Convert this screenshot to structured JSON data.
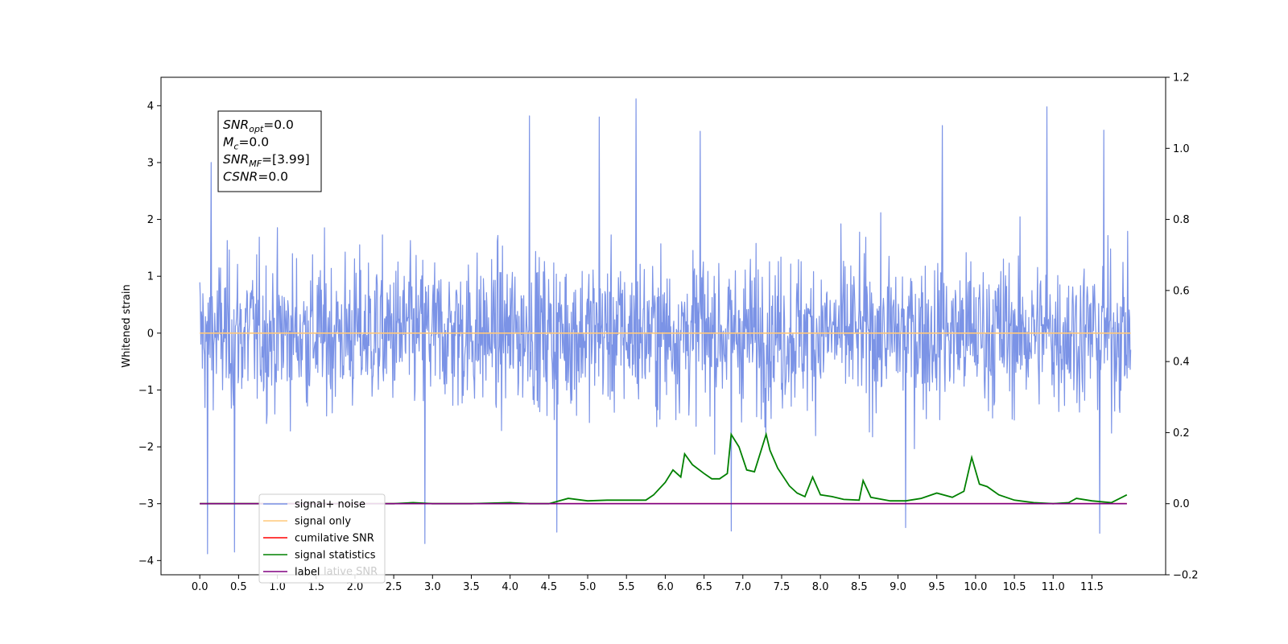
{
  "chart_data": {
    "type": "line",
    "title": "",
    "xlabel": "",
    "ylabel": "Whitened strain",
    "xlim": [
      -0.5,
      12.45
    ],
    "ylim": [
      -4.25,
      4.5
    ],
    "y2lim": [
      -0.2,
      1.2
    ],
    "x_ticks": [
      "0.0",
      "0.5",
      "1.0",
      "1.5",
      "2.0",
      "2.5",
      "3.0",
      "3.5",
      "4.0",
      "4.5",
      "5.0",
      "5.5",
      "6.0",
      "6.5",
      "7.0",
      "7.5",
      "8.0",
      "8.5",
      "9.0",
      "9.5",
      "10.0",
      "10.5",
      "11.0",
      "11.5"
    ],
    "y_ticks": [
      "−4",
      "−3",
      "−2",
      "−1",
      "0",
      "1",
      "2",
      "3",
      "4"
    ],
    "y2_ticks": [
      "−0.2",
      "0.0",
      "0.2",
      "0.4",
      "0.6",
      "0.8",
      "1.0",
      "1.2"
    ],
    "grid": false,
    "legend_position": "lower-left",
    "info_box": {
      "lines": [
        {
          "main": "SNR",
          "sub": "opt",
          "value": "=0.0"
        },
        {
          "main": "M",
          "sub": "c",
          "value": "=0.0"
        },
        {
          "main": "SNR",
          "sub": "MF",
          "value": "=[3.99]"
        },
        {
          "main": "CSNR",
          "sub": "",
          "value": "=0.0"
        }
      ]
    },
    "legend": [
      {
        "label": "signal+ noise",
        "color": "#7b93e6"
      },
      {
        "label": "signal only",
        "color": "#ffc87a"
      },
      {
        "label": "cumilative SNR",
        "color": "#ff0000"
      },
      {
        "label": "signal statistics",
        "color": "#008000"
      },
      {
        "label": "label",
        "color": "#800080"
      }
    ],
    "hidden_legend_fragment": "lative SNR",
    "series": [
      {
        "name": "signal+ noise",
        "axis": "left",
        "color": "#7b93e6",
        "t_range": [
          0.0,
          12.0
        ],
        "sample_count": 1800,
        "typical_envelope": [
          -1.6,
          1.6
        ],
        "notable_peaks": [
          {
            "x": 0.1,
            "y": 3.55
          },
          {
            "x": 0.15,
            "y": 3.0
          },
          {
            "x": 4.25,
            "y": 3.82
          },
          {
            "x": 5.15,
            "y": 3.8
          },
          {
            "x": 5.62,
            "y": 4.12
          },
          {
            "x": 6.45,
            "y": 3.55
          },
          {
            "x": 9.57,
            "y": 3.65
          },
          {
            "x": 10.92,
            "y": 3.98
          },
          {
            "x": 11.65,
            "y": 3.57
          },
          {
            "x": 0.1,
            "y": -3.88
          },
          {
            "x": 0.45,
            "y": -3.85
          },
          {
            "x": 2.9,
            "y": -3.7
          },
          {
            "x": 4.6,
            "y": -3.5
          },
          {
            "x": 6.85,
            "y": -3.48
          },
          {
            "x": 11.6,
            "y": -3.52
          },
          {
            "x": 9.1,
            "y": -3.42
          }
        ]
      },
      {
        "name": "signal only",
        "axis": "left",
        "color": "#ffc87a",
        "x": [
          0.0,
          12.0
        ],
        "y": [
          0.0,
          0.0
        ]
      },
      {
        "name": "cumilative SNR",
        "axis": "right",
        "color": "#ff0000",
        "x": [
          0.0,
          11.95
        ],
        "y": [
          0.0,
          0.0
        ]
      },
      {
        "name": "signal statistics",
        "axis": "right",
        "color": "#008000",
        "x": [
          0.0,
          0.5,
          1.0,
          1.5,
          2.0,
          2.5,
          2.75,
          3.0,
          3.5,
          4.0,
          4.25,
          4.5,
          4.75,
          5.0,
          5.25,
          5.5,
          5.75,
          5.85,
          6.0,
          6.1,
          6.2,
          6.25,
          6.35,
          6.5,
          6.6,
          6.7,
          6.8,
          6.85,
          6.95,
          7.05,
          7.15,
          7.3,
          7.35,
          7.45,
          7.6,
          7.7,
          7.8,
          7.9,
          8.0,
          8.15,
          8.3,
          8.5,
          8.55,
          8.65,
          8.9,
          9.1,
          9.3,
          9.5,
          9.7,
          9.85,
          9.95,
          10.05,
          10.15,
          10.3,
          10.5,
          10.75,
          11.0,
          11.2,
          11.3,
          11.5,
          11.75,
          11.95
        ],
        "y": [
          0.0,
          0.0,
          0.0,
          0.0,
          0.0,
          0.0,
          0.003,
          0.0,
          0.0,
          0.003,
          0.0,
          0.0,
          0.015,
          0.008,
          0.01,
          0.01,
          0.01,
          0.025,
          0.06,
          0.095,
          0.075,
          0.14,
          0.11,
          0.085,
          0.07,
          0.07,
          0.085,
          0.195,
          0.16,
          0.095,
          0.09,
          0.195,
          0.15,
          0.1,
          0.05,
          0.03,
          0.02,
          0.075,
          0.025,
          0.02,
          0.012,
          0.01,
          0.065,
          0.018,
          0.008,
          0.008,
          0.015,
          0.03,
          0.018,
          0.035,
          0.13,
          0.055,
          0.048,
          0.025,
          0.01,
          0.003,
          0.0,
          0.003,
          0.015,
          0.008,
          0.003,
          0.025
        ]
      },
      {
        "name": "label",
        "axis": "right",
        "color": "#800080",
        "x": [
          0.0,
          11.95
        ],
        "y": [
          0.0,
          0.0
        ]
      }
    ]
  }
}
